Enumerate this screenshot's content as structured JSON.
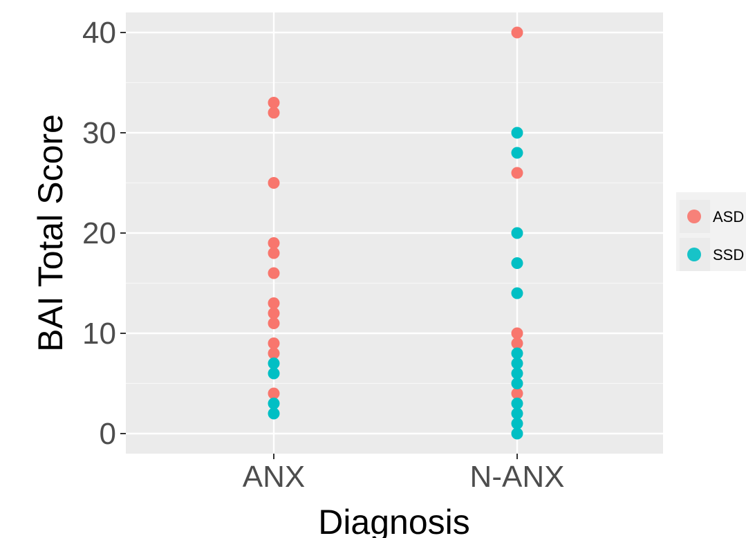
{
  "chart_data": {
    "type": "scatter",
    "title": "",
    "xlabel": "Diagnosis",
    "ylabel": "BAI  Total  Score",
    "categories": [
      "ANX",
      "N-ANX"
    ],
    "ylim": [
      -2,
      42
    ],
    "yticks": [
      0,
      10,
      20,
      30,
      40
    ],
    "grid": true,
    "legend_position": "right",
    "series": [
      {
        "name": "ASD",
        "color": "#F8766D",
        "points": [
          {
            "x": "ANX",
            "y": 33
          },
          {
            "x": "ANX",
            "y": 32
          },
          {
            "x": "ANX",
            "y": 25
          },
          {
            "x": "ANX",
            "y": 19
          },
          {
            "x": "ANX",
            "y": 18
          },
          {
            "x": "ANX",
            "y": 16
          },
          {
            "x": "ANX",
            "y": 13
          },
          {
            "x": "ANX",
            "y": 12
          },
          {
            "x": "ANX",
            "y": 11
          },
          {
            "x": "ANX",
            "y": 9
          },
          {
            "x": "ANX",
            "y": 8
          },
          {
            "x": "ANX",
            "y": 4
          },
          {
            "x": "N-ANX",
            "y": 40
          },
          {
            "x": "N-ANX",
            "y": 26
          },
          {
            "x": "N-ANX",
            "y": 10
          },
          {
            "x": "N-ANX",
            "y": 9
          },
          {
            "x": "N-ANX",
            "y": 4
          }
        ]
      },
      {
        "name": "SSD",
        "color": "#00BFC4",
        "points": [
          {
            "x": "ANX",
            "y": 7
          },
          {
            "x": "ANX",
            "y": 6
          },
          {
            "x": "ANX",
            "y": 3
          },
          {
            "x": "ANX",
            "y": 2
          },
          {
            "x": "N-ANX",
            "y": 30
          },
          {
            "x": "N-ANX",
            "y": 28
          },
          {
            "x": "N-ANX",
            "y": 20
          },
          {
            "x": "N-ANX",
            "y": 17
          },
          {
            "x": "N-ANX",
            "y": 14
          },
          {
            "x": "N-ANX",
            "y": 8
          },
          {
            "x": "N-ANX",
            "y": 7
          },
          {
            "x": "N-ANX",
            "y": 6
          },
          {
            "x": "N-ANX",
            "y": 5
          },
          {
            "x": "N-ANX",
            "y": 3
          },
          {
            "x": "N-ANX",
            "y": 2
          },
          {
            "x": "N-ANX",
            "y": 1
          },
          {
            "x": "N-ANX",
            "y": 0
          }
        ]
      }
    ],
    "legend": [
      {
        "label": "ASD",
        "color": "#F8766D"
      },
      {
        "label": "SSD",
        "color": "#00BFC4"
      }
    ]
  }
}
